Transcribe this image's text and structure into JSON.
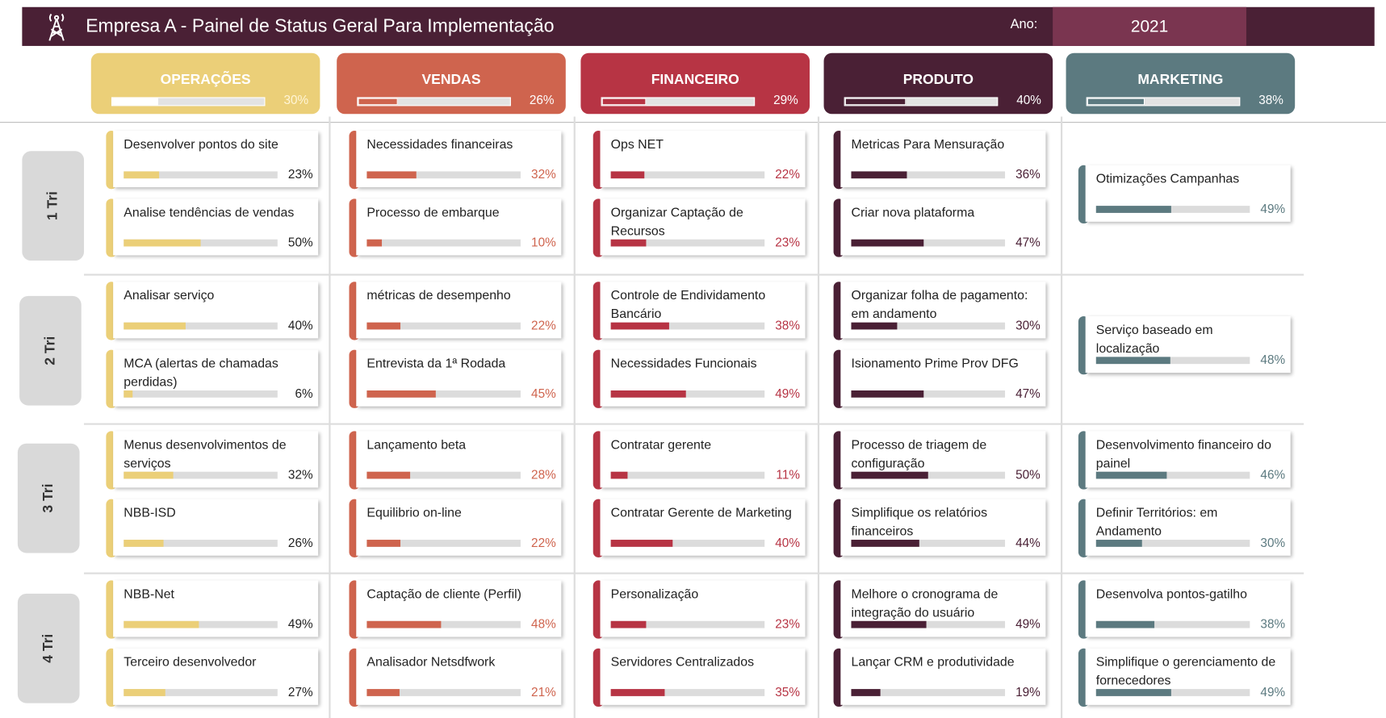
{
  "header": {
    "title": "Empresa A - Painel de Status Geral Para Implementação",
    "year_label": "Ano:",
    "year": "2021"
  },
  "quarters": [
    "1 Tri",
    "2 Tri",
    "3 Tri",
    "4 Tri"
  ],
  "columns": [
    {
      "name": "OPERAÇÕES",
      "color": "#ebcf78",
      "text_color": "#222222",
      "progress": {
        "value": 30,
        "label": "30%"
      },
      "quarters": [
        [
          {
            "title": "Desenvolver pontos do site",
            "progress": {
              "value": 23,
              "label": "23%"
            }
          },
          {
            "title": "Analise tendências de vendas",
            "progress": {
              "value": 50,
              "label": "50%"
            }
          }
        ],
        [
          {
            "title": "Analisar serviço",
            "progress": {
              "value": 40,
              "label": "40%"
            }
          },
          {
            "title": "MCA (alertas de chamadas perdidas)",
            "progress": {
              "value": 6,
              "label": "6%"
            }
          }
        ],
        [
          {
            "title": "Menus desenvolvimentos de serviços",
            "progress": {
              "value": 32,
              "label": "32%"
            }
          },
          {
            "title": "NBB-ISD",
            "progress": {
              "value": 26,
              "label": "26%"
            }
          }
        ],
        [
          {
            "title": "NBB-Net",
            "progress": {
              "value": 49,
              "label": "49%"
            }
          },
          {
            "title": "Terceiro desenvolvedor",
            "progress": {
              "value": 27,
              "label": "27%"
            }
          }
        ]
      ]
    },
    {
      "name": "VENDAS",
      "color": "#cf644e",
      "text_color": "#cf644e",
      "progress": {
        "value": 26,
        "label": "26%"
      },
      "quarters": [
        [
          {
            "title": "Necessidades financeiras",
            "progress": {
              "value": 32,
              "label": "32%"
            }
          },
          {
            "title": "Processo de embarque",
            "progress": {
              "value": 10,
              "label": "10%"
            }
          }
        ],
        [
          {
            "title": "métricas de desempenho",
            "progress": {
              "value": 22,
              "label": "22%"
            }
          },
          {
            "title": "Entrevista da 1ª Rodada",
            "progress": {
              "value": 45,
              "label": "45%"
            }
          }
        ],
        [
          {
            "title": "Lançamento beta",
            "progress": {
              "value": 28,
              "label": "28%"
            }
          },
          {
            "title": "Equilibrio on-line",
            "progress": {
              "value": 22,
              "label": "22%"
            }
          }
        ],
        [
          {
            "title": "Captação de cliente (Perfil)",
            "progress": {
              "value": 48,
              "label": "48%"
            }
          },
          {
            "title": "Analisador Netsdfwork",
            "progress": {
              "value": 21,
              "label": "21%"
            }
          }
        ]
      ]
    },
    {
      "name": "FINANCEIRO",
      "color": "#b73444",
      "text_color": "#b73444",
      "progress": {
        "value": 29,
        "label": "29%"
      },
      "quarters": [
        [
          {
            "title": "Ops NET",
            "progress": {
              "value": 22,
              "label": "22%"
            }
          },
          {
            "title": "Organizar Captação de Recursos",
            "progress": {
              "value": 23,
              "label": "23%"
            }
          }
        ],
        [
          {
            "title": "Controle de Endividamento Bancário",
            "progress": {
              "value": 38,
              "label": "38%"
            }
          },
          {
            "title": "Necessidades Funcionais",
            "progress": {
              "value": 49,
              "label": "49%"
            }
          }
        ],
        [
          {
            "title": "Contratar gerente",
            "progress": {
              "value": 11,
              "label": "11%"
            }
          },
          {
            "title": "Contratar Gerente de Marketing",
            "progress": {
              "value": 40,
              "label": "40%"
            }
          }
        ],
        [
          {
            "title": "Personalização",
            "progress": {
              "value": 23,
              "label": "23%"
            }
          },
          {
            "title": "Servidores Centralizados",
            "progress": {
              "value": 35,
              "label": "35%"
            }
          }
        ]
      ]
    },
    {
      "name": "PRODUTO",
      "color": "#4a2035",
      "text_color": "#4a2035",
      "progress": {
        "value": 40,
        "label": "40%"
      },
      "quarters": [
        [
          {
            "title": "Metricas Para Mensuração",
            "progress": {
              "value": 36,
              "label": "36%"
            }
          },
          {
            "title": "Criar nova plataforma",
            "progress": {
              "value": 47,
              "label": "47%"
            }
          }
        ],
        [
          {
            "title": "Organizar folha de pagamento: em andamento",
            "progress": {
              "value": 30,
              "label": "30%"
            }
          },
          {
            "title": "Isionamento Prime Prov DFG",
            "progress": {
              "value": 47,
              "label": "47%"
            }
          }
        ],
        [
          {
            "title": "Processo de triagem de configuração",
            "progress": {
              "value": 50,
              "label": "50%"
            }
          },
          {
            "title": "Simplifique os relatórios financeiros",
            "progress": {
              "value": 44,
              "label": "44%"
            }
          }
        ],
        [
          {
            "title": "Melhore o cronograma de integração do usuário",
            "progress": {
              "value": 49,
              "label": "49%"
            }
          },
          {
            "title": "Lançar CRM e produtividade",
            "progress": {
              "value": 19,
              "label": "19%"
            }
          }
        ]
      ]
    },
    {
      "name": "MARKETING",
      "color": "#5c7a80",
      "text_color": "#5c7a80",
      "progress": {
        "value": 38,
        "label": "38%"
      },
      "quarters": [
        [
          {
            "title": "Otimizações Campanhas",
            "progress": {
              "value": 49,
              "label": "49%"
            }
          }
        ],
        [
          {
            "title": "Serviço baseado em localização",
            "progress": {
              "value": 48,
              "label": "48%"
            }
          }
        ],
        [
          {
            "title": "Desenvolvimento financeiro do painel",
            "progress": {
              "value": 46,
              "label": "46%"
            }
          },
          {
            "title": "Definir Territórios: em Andamento",
            "progress": {
              "value": 30,
              "label": "30%"
            }
          }
        ],
        [
          {
            "title": "Desenvolva pontos-gatilho",
            "progress": {
              "value": 38,
              "label": "38%"
            }
          },
          {
            "title": "Simplifique o gerenciamento de fornecedores",
            "progress": {
              "value": 49,
              "label": "49%"
            }
          }
        ]
      ]
    }
  ]
}
